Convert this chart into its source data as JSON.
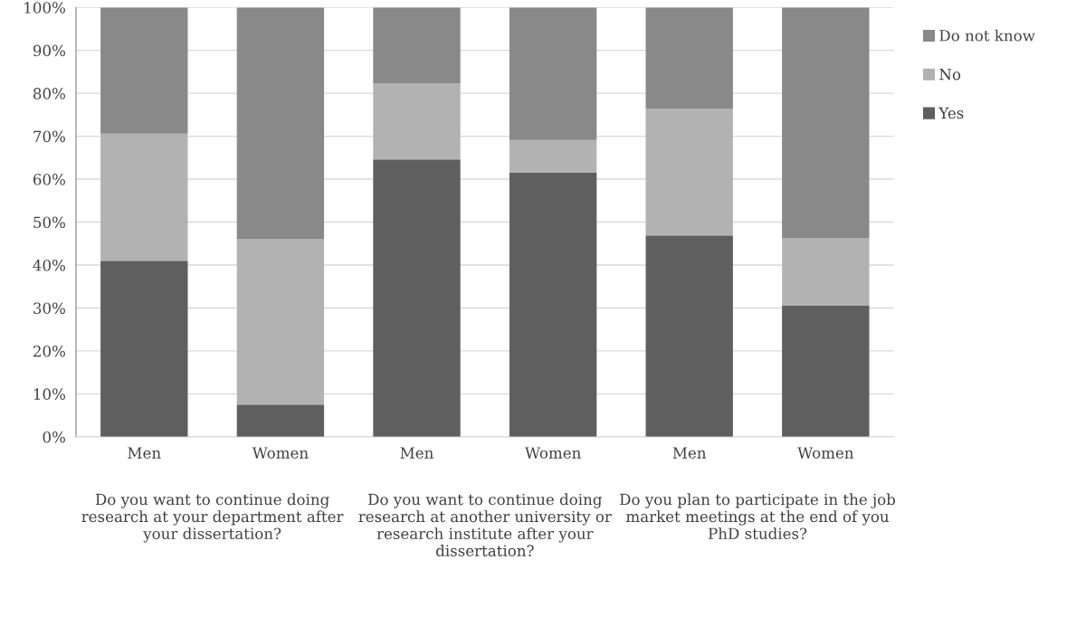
{
  "chart_data": {
    "type": "bar",
    "stacked": true,
    "categories": [
      "Men",
      "Women",
      "Men",
      "Women",
      "Men",
      "Women"
    ],
    "series": [
      {
        "name": "Yes",
        "color": "#5f5f5f",
        "values": [
          41.0,
          7.5,
          64.6,
          61.5,
          46.9,
          30.6
        ]
      },
      {
        "name": "No",
        "color": "#b2b2b2",
        "values": [
          29.6,
          38.6,
          17.7,
          7.6,
          29.5,
          15.6
        ]
      },
      {
        "name": "Do not know",
        "color": "#898989",
        "values": [
          29.4,
          53.9,
          17.7,
          30.9,
          23.6,
          53.8
        ]
      }
    ],
    "annotations": [
      "Do you want to continue doing research at your department after your dissertation?",
      "Do you want to continue doing research at another university or research institute after your dissertation?",
      "Do you plan to participate in the job market meetings at the end of you PhD studies?"
    ],
    "ylim": [
      0,
      100
    ],
    "yticks": [
      {
        "value": 0,
        "label": "0%"
      },
      {
        "value": 10,
        "label": "10%"
      },
      {
        "value": 20,
        "label": "20%"
      },
      {
        "value": 30,
        "label": "30%"
      },
      {
        "value": 40,
        "label": "40%"
      },
      {
        "value": 50,
        "label": "50%"
      },
      {
        "value": 60,
        "label": "60%"
      },
      {
        "value": 70,
        "label": "70%"
      },
      {
        "value": 80,
        "label": "80%"
      },
      {
        "value": 90,
        "label": "90%"
      },
      {
        "value": 100,
        "label": "100%"
      }
    ],
    "grid": "y",
    "legend": "right"
  }
}
